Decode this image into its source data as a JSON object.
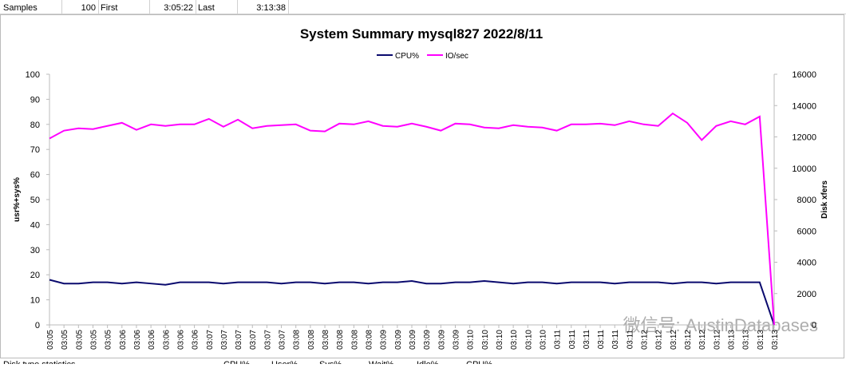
{
  "sheet": {
    "top_row": [
      "Samples",
      "100",
      "First",
      "3:05:22",
      "Last",
      "3:13:38"
    ],
    "bottom_row": [
      "Disk type statistics",
      "CPU%",
      "User%",
      "Sys%",
      "Wait%",
      "Idle%",
      "CPU%"
    ],
    "watermark": "微信号: AustinDatabases"
  },
  "chart_data": {
    "type": "line",
    "title": "System Summary mysql827  2022/8/11",
    "ylabel": "usr%+sys%",
    "y2label": "Disk xfers",
    "categories": [
      "03:05",
      "03:05",
      "03:05",
      "03:05",
      "03:05",
      "03:06",
      "03:06",
      "03:06",
      "03:06",
      "03:06",
      "03:06",
      "03:07",
      "03:07",
      "03:07",
      "03:07",
      "03:07",
      "03:07",
      "03:08",
      "03:08",
      "03:08",
      "03:08",
      "03:08",
      "03:08",
      "03:09",
      "03:09",
      "03:09",
      "03:09",
      "03:09",
      "03:09",
      "03:10",
      "03:10",
      "03:10",
      "03:10",
      "03:10",
      "03:10",
      "03:11",
      "03:11",
      "03:11",
      "03:11",
      "03:11",
      "03:11",
      "03:12",
      "03:12",
      "03:12",
      "03:12",
      "03:12",
      "03:12",
      "03:13",
      "03:13",
      "03:13",
      "03:13"
    ],
    "series": [
      {
        "name": "CPU%",
        "color": "#0a0a6e",
        "values": [
          18,
          16.5,
          16.5,
          17,
          17,
          16.5,
          17,
          16.5,
          16,
          17,
          17,
          17,
          16.5,
          17,
          17,
          17,
          16.5,
          17,
          17,
          16.5,
          17,
          17,
          16.5,
          17,
          17,
          17.5,
          16.5,
          16.5,
          17,
          17,
          17.5,
          17,
          16.5,
          17,
          17,
          16.5,
          17,
          17,
          17,
          16.5,
          17,
          17,
          17,
          16.5,
          17,
          17,
          16.5,
          17,
          17,
          17,
          0
        ]
      },
      {
        "name": "IO/sec",
        "color": "#ff00ff",
        "axis": "y2",
        "values": [
          11900,
          12400,
          12550,
          12500,
          12700,
          12900,
          12450,
          12800,
          12700,
          12800,
          12800,
          13150,
          12650,
          13100,
          12550,
          12700,
          12750,
          12800,
          12400,
          12350,
          12850,
          12800,
          13000,
          12700,
          12650,
          12850,
          12650,
          12400,
          12850,
          12800,
          12600,
          12550,
          12750,
          12650,
          12600,
          12400,
          12800,
          12800,
          12850,
          12750,
          13000,
          12800,
          12700,
          13500,
          12900,
          11800,
          12700,
          13000,
          12800,
          13300,
          0
        ]
      }
    ],
    "ylim": [
      0,
      100
    ],
    "yticks": [
      0,
      10,
      20,
      30,
      40,
      50,
      60,
      70,
      80,
      90,
      100
    ],
    "y2lim": [
      0,
      16000
    ],
    "y2ticks": [
      0,
      2000,
      4000,
      6000,
      8000,
      10000,
      12000,
      14000,
      16000
    ],
    "grid": false,
    "legend": "top"
  }
}
